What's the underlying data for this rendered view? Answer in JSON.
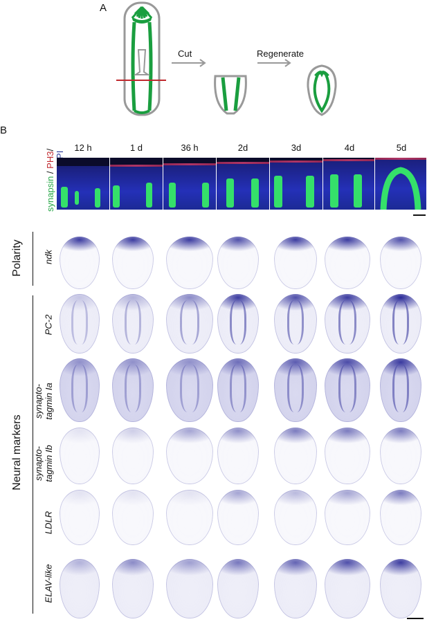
{
  "panel_a": {
    "letter": "A",
    "cut_label": "Cut",
    "regenerate_label": "Regenerate"
  },
  "panel_b": {
    "letter": "B",
    "timepoints": [
      "12 h",
      "1 d",
      "36 h",
      "2d",
      "3d",
      "4d",
      "5d"
    ],
    "stain_label": {
      "synapsin": "synapsin",
      "sep1": " / ",
      "ph3": "PH3",
      "sep2": "/",
      "dapi": "DAPI"
    },
    "colors": {
      "synapsin": "#2aa84a",
      "ph3": "#c0282d",
      "dapi": "#2b3a9c"
    },
    "group_labels": {
      "polarity": "Polarity",
      "neural_markers": "Neural markers"
    },
    "rows": [
      {
        "gene": "ndk"
      },
      {
        "gene": "PC-2"
      },
      {
        "gene_line1": "synapto-",
        "gene_line2": "tagmin Ia"
      },
      {
        "gene_line1": "synapto-",
        "gene_line2": "tagmin Ib"
      },
      {
        "gene": "LDLR"
      },
      {
        "gene": "ELAV-like"
      }
    ]
  }
}
